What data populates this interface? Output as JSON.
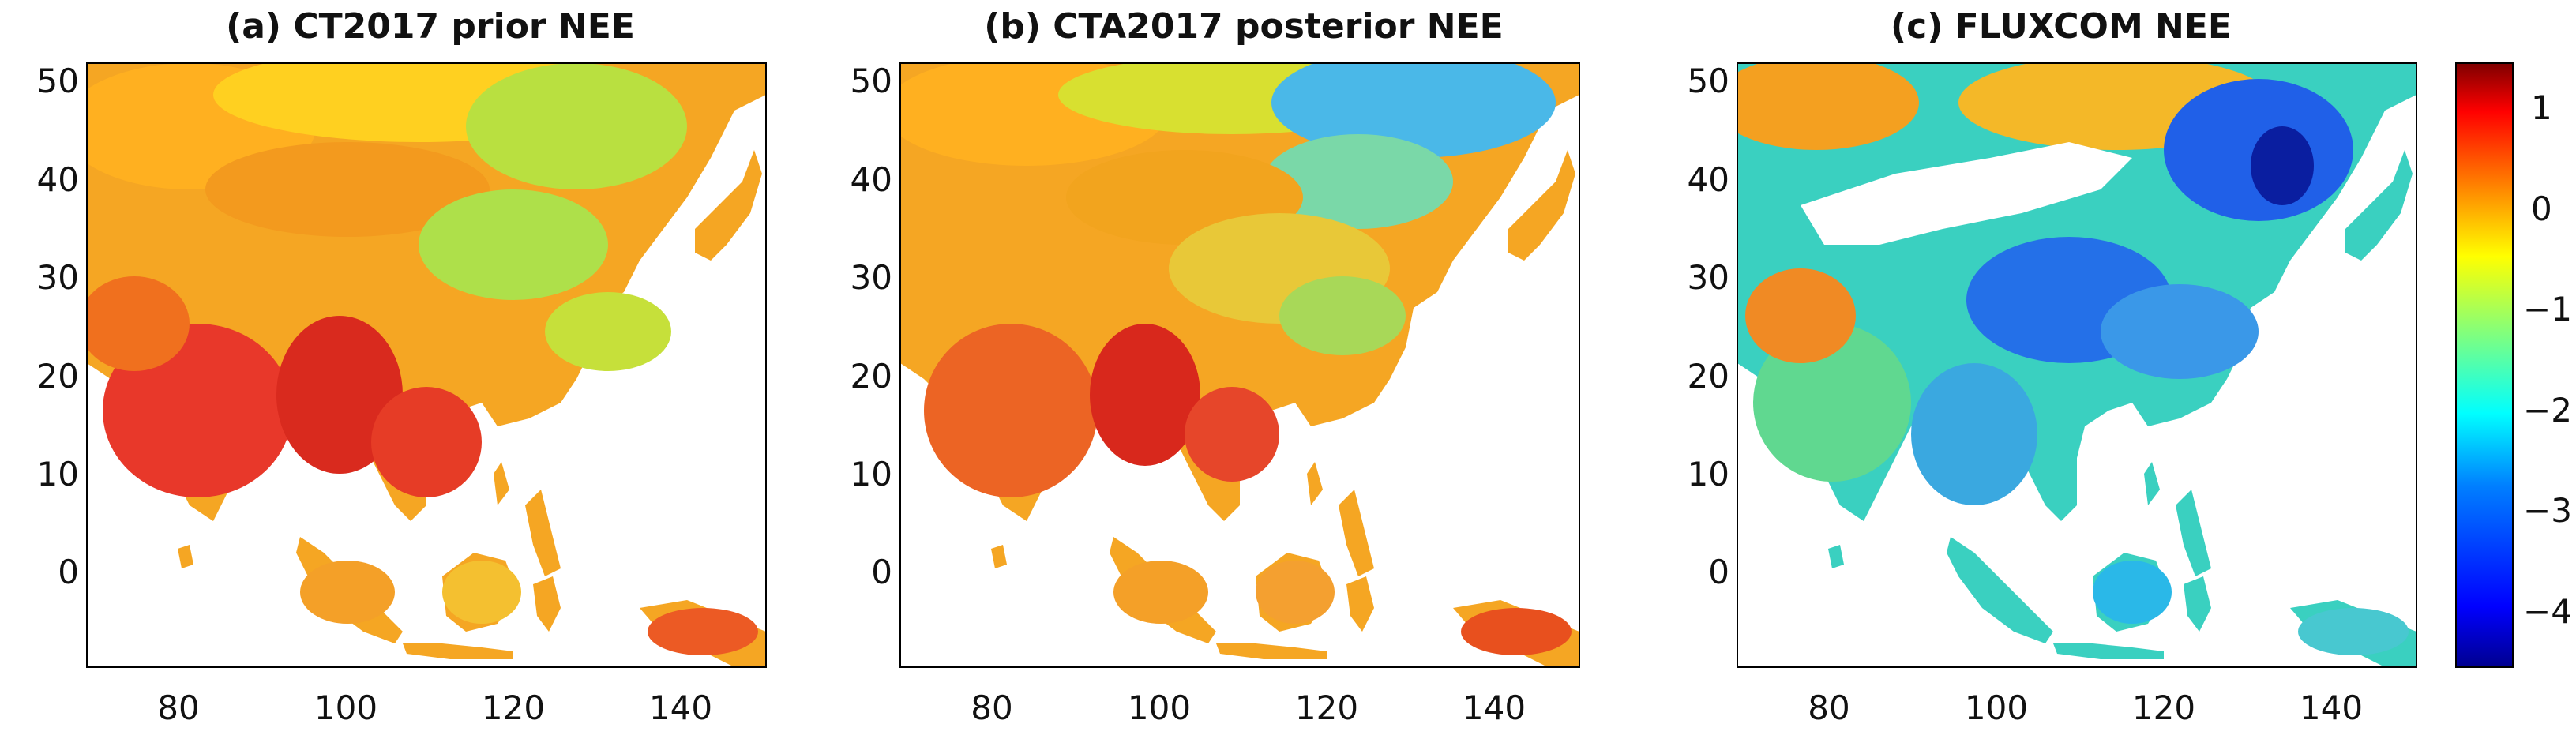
{
  "figure": {
    "panels": [
      {
        "title": "(a) CT2017 prior NEE"
      },
      {
        "title": "(b) CTA2017 posterior NEE"
      },
      {
        "title": "(c) FLUXCOM NEE"
      }
    ],
    "x_ticks": [
      "80",
      "100",
      "120",
      "140"
    ],
    "y_ticks": [
      "50",
      "40",
      "30",
      "20",
      "10",
      "0"
    ],
    "colorbar": {
      "ticks": [
        "1",
        "0",
        "−1",
        "−2",
        "−3",
        "−4"
      ],
      "range": [
        -4.5,
        1.5
      ],
      "colors": [
        "#00008f",
        "#0000ff",
        "#007fff",
        "#00ffff",
        "#7fff7f",
        "#ffff00",
        "#ff7f00",
        "#ff0000",
        "#7f0000"
      ]
    },
    "map_extent": {
      "lon": [
        69,
        150
      ],
      "lat": [
        -10,
        52
      ]
    }
  }
}
